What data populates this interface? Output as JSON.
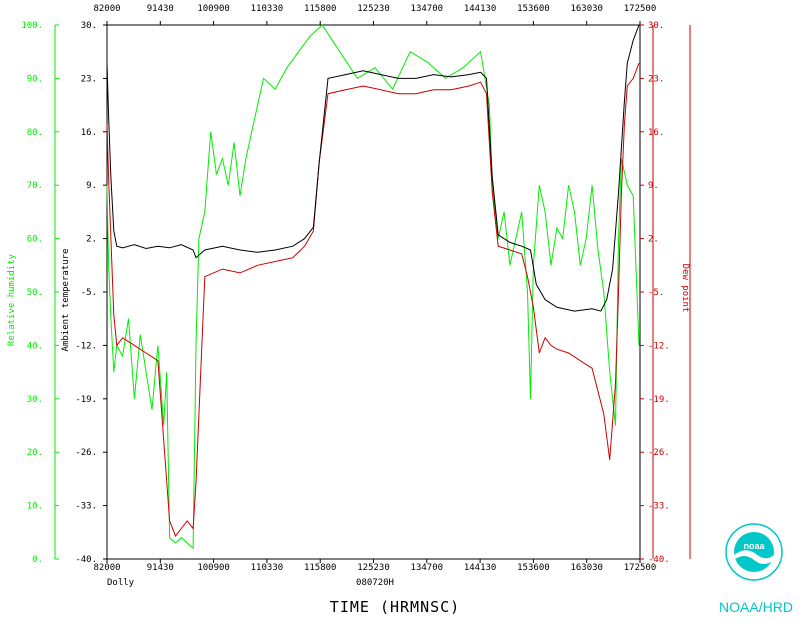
{
  "colors": {
    "humidity": "#00ee00",
    "temperature": "#000000",
    "dewpoint": "#cc0000",
    "logo": "#00c8c8"
  },
  "icons": {
    "logo": "noaa-logo-icon"
  },
  "labels": {
    "storm": "Dolly",
    "date": "080720H",
    "xtitle": "TIME (HRMNSC)",
    "credit": "NOAA/HRD",
    "logo_text": "noaa"
  },
  "chart_data": {
    "type": "line",
    "title": "",
    "xlabel": "TIME (HRMNSC)",
    "x_ticks": [
      "82000",
      "91430",
      "100900",
      "110330",
      "115800",
      "125230",
      "134700",
      "144130",
      "153600",
      "163030",
      "172500"
    ],
    "x_range_hours": [
      8.3333,
      17.4167
    ],
    "axes": {
      "humidity": {
        "label": "Relative humidity",
        "ticks": [
          "0.",
          "10.",
          "20.",
          "30.",
          "40.",
          "50.",
          "60.",
          "70.",
          "80.",
          "90.",
          "100."
        ],
        "range": [
          0,
          100
        ]
      },
      "temperature": {
        "label": "Ambient temperature",
        "ticks": [
          "-40.",
          "-33.",
          "-26.",
          "-19.",
          "-12.",
          "-5.",
          "2.",
          "9.",
          "16.",
          "23.",
          "30."
        ],
        "range": [
          -40,
          30
        ]
      },
      "dewpoint": {
        "label": "Dew point",
        "ticks": [
          "-40.",
          "-33.",
          "-26.",
          "-19.",
          "-12.",
          "-5.",
          "2.",
          "9.",
          "16.",
          "23.",
          "30."
        ],
        "range": [
          -40,
          30
        ]
      }
    },
    "series": [
      {
        "key": "temperature",
        "axis": "temperature",
        "x": [
          8.333,
          8.36,
          8.4,
          8.45,
          8.5,
          8.6,
          8.8,
          9.0,
          9.2,
          9.4,
          9.6,
          9.8,
          9.85,
          10.0,
          10.3,
          10.6,
          10.9,
          11.2,
          11.5,
          11.7,
          11.85,
          11.95,
          12.1,
          12.4,
          12.7,
          13.0,
          13.3,
          13.6,
          13.9,
          14.2,
          14.5,
          14.7,
          14.8,
          14.9,
          15.0,
          15.2,
          15.4,
          15.55,
          15.65,
          15.8,
          16.0,
          16.3,
          16.6,
          16.75,
          16.85,
          16.95,
          17.05,
          17.15,
          17.2,
          17.3,
          17.4
        ],
        "y": [
          25,
          18,
          10,
          3,
          1,
          0.8,
          1.2,
          0.7,
          1.0,
          0.8,
          1.2,
          0.5,
          -0.5,
          0.5,
          1.0,
          0.5,
          0.2,
          0.5,
          1.0,
          2.0,
          3.5,
          12,
          23,
          23.5,
          24,
          23.5,
          23,
          23,
          23.5,
          23.2,
          23.5,
          23.8,
          23,
          10,
          2.5,
          1.5,
          1.0,
          0.5,
          -4,
          -6,
          -7,
          -7.5,
          -7.2,
          -7.5,
          -6,
          -2,
          8,
          20,
          25,
          28,
          30
        ]
      },
      {
        "key": "dewpoint",
        "axis": "temperature",
        "x": [
          8.333,
          8.36,
          8.4,
          8.45,
          8.5,
          8.6,
          8.8,
          9.0,
          9.2,
          9.4,
          9.5,
          9.6,
          9.7,
          9.8,
          9.85,
          10.0,
          10.3,
          10.6,
          10.9,
          11.2,
          11.5,
          11.7,
          11.85,
          11.95,
          12.1,
          12.4,
          12.7,
          13.0,
          13.3,
          13.6,
          13.9,
          14.2,
          14.5,
          14.7,
          14.8,
          14.9,
          15.0,
          15.2,
          15.4,
          15.5,
          15.6,
          15.7,
          15.8,
          15.9,
          16.0,
          16.2,
          16.4,
          16.6,
          16.8,
          16.9,
          17.0,
          17.05,
          17.1,
          17.15,
          17.2,
          17.3,
          17.4
        ],
        "y": [
          17,
          10,
          2,
          -8,
          -12,
          -11,
          -12,
          -13,
          -14,
          -35,
          -37,
          -36,
          -35,
          -36,
          -30,
          -3,
          -2,
          -2.5,
          -1.5,
          -1,
          -0.5,
          1,
          3,
          12,
          21,
          21.5,
          22,
          21.5,
          21,
          21,
          21.5,
          21.5,
          22,
          22.5,
          21,
          8,
          1,
          0.5,
          0,
          -3,
          -7,
          -13,
          -11,
          -12,
          -12.5,
          -13,
          -14,
          -15,
          -21,
          -27,
          -17,
          -5,
          8,
          17,
          22,
          23,
          25
        ]
      },
      {
        "key": "humidity",
        "axis": "humidity",
        "x": [
          8.333,
          8.36,
          8.4,
          8.45,
          8.5,
          8.6,
          8.7,
          8.8,
          8.9,
          9.0,
          9.1,
          9.2,
          9.3,
          9.35,
          9.4,
          9.5,
          9.6,
          9.7,
          9.8,
          9.85,
          9.9,
          10.0,
          10.1,
          10.2,
          10.3,
          10.4,
          10.5,
          10.6,
          10.7,
          10.8,
          10.9,
          11.0,
          11.2,
          11.4,
          11.6,
          11.8,
          12.0,
          12.3,
          12.6,
          12.9,
          13.2,
          13.5,
          13.8,
          14.1,
          14.4,
          14.7,
          14.85,
          14.9,
          15.0,
          15.1,
          15.2,
          15.3,
          15.4,
          15.5,
          15.55,
          15.6,
          15.7,
          15.8,
          15.9,
          16.0,
          16.1,
          16.2,
          16.3,
          16.4,
          16.5,
          16.6,
          16.7,
          16.8,
          16.9,
          17.0,
          17.05,
          17.1,
          17.2,
          17.3,
          17.4
        ],
        "y": [
          70,
          55,
          45,
          35,
          40,
          38,
          45,
          30,
          42,
          35,
          28,
          40,
          25,
          35,
          4,
          3,
          4,
          3,
          2,
          40,
          60,
          65,
          80,
          72,
          75,
          70,
          78,
          68,
          75,
          80,
          85,
          90,
          88,
          92,
          95,
          98,
          100,
          95,
          90,
          92,
          88,
          95,
          93,
          90,
          92,
          95,
          85,
          70,
          60,
          65,
          55,
          60,
          65,
          50,
          30,
          55,
          70,
          65,
          55,
          62,
          60,
          70,
          65,
          55,
          60,
          70,
          58,
          50,
          35,
          25,
          60,
          75,
          70,
          68,
          40
        ]
      }
    ]
  }
}
